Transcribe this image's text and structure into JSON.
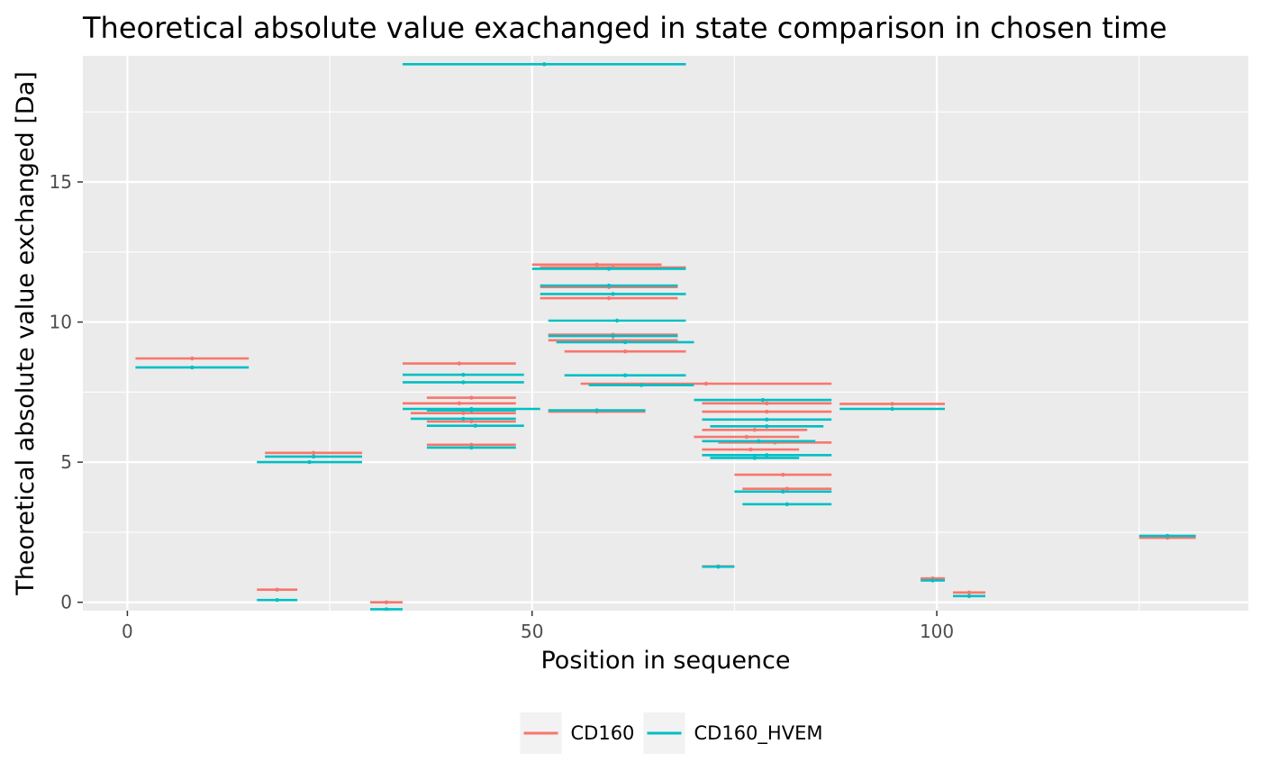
{
  "chart_data": {
    "type": "errorbar-segments",
    "title": "Theoretical absolute value exachanged in state comparison in chosen time",
    "xlabel": "Position in sequence",
    "ylabel": "Theoretical absolute value exchanged [Da]",
    "xlim": [
      -5.5,
      138.5
    ],
    "ylim": [
      -0.3,
      19.5
    ],
    "x_ticks": [
      0,
      50,
      100
    ],
    "x_tick_labels": [
      "0",
      "50",
      "100"
    ],
    "y_ticks": [
      0,
      5,
      10,
      15
    ],
    "y_tick_labels": [
      "0",
      "5",
      "10",
      "15"
    ],
    "grid": true,
    "legend_position": "bottom",
    "series": [
      {
        "name": "CD160",
        "color": "#F8766D",
        "segments": [
          {
            "start": 1,
            "end": 15,
            "value": 8.7
          },
          {
            "start": 16,
            "end": 21,
            "value": 0.45
          },
          {
            "start": 17,
            "end": 29,
            "value": 5.33
          },
          {
            "start": 30,
            "end": 34,
            "value": 0.0
          },
          {
            "start": 34,
            "end": 69,
            "value": 19.6
          },
          {
            "start": 34,
            "end": 48,
            "value": 8.52
          },
          {
            "start": 34,
            "end": 48,
            "value": 7.1
          },
          {
            "start": 35,
            "end": 48,
            "value": 6.75
          },
          {
            "start": 37,
            "end": 48,
            "value": 7.3
          },
          {
            "start": 37,
            "end": 48,
            "value": 6.45
          },
          {
            "start": 37,
            "end": 48,
            "value": 5.62
          },
          {
            "start": 50,
            "end": 66,
            "value": 12.05
          },
          {
            "start": 51,
            "end": 69,
            "value": 11.95
          },
          {
            "start": 51,
            "end": 68,
            "value": 11.25
          },
          {
            "start": 51,
            "end": 68,
            "value": 10.85
          },
          {
            "start": 52,
            "end": 68,
            "value": 9.55
          },
          {
            "start": 52,
            "end": 68,
            "value": 9.35
          },
          {
            "start": 54,
            "end": 69,
            "value": 8.95
          },
          {
            "start": 52,
            "end": 64,
            "value": 6.8
          },
          {
            "start": 56,
            "end": 87,
            "value": 7.8
          },
          {
            "start": 71,
            "end": 87,
            "value": 6.8
          },
          {
            "start": 71,
            "end": 87,
            "value": 7.1
          },
          {
            "start": 71,
            "end": 84,
            "value": 6.15
          },
          {
            "start": 70,
            "end": 83,
            "value": 5.9
          },
          {
            "start": 73,
            "end": 87,
            "value": 5.7
          },
          {
            "start": 71,
            "end": 83,
            "value": 5.45
          },
          {
            "start": 75,
            "end": 87,
            "value": 4.55
          },
          {
            "start": 76,
            "end": 87,
            "value": 4.05
          },
          {
            "start": 71,
            "end": 75,
            "value": 1.28
          },
          {
            "start": 88,
            "end": 101,
            "value": 7.08
          },
          {
            "start": 98,
            "end": 101,
            "value": 0.85
          },
          {
            "start": 102,
            "end": 106,
            "value": 0.35
          },
          {
            "start": 125,
            "end": 132,
            "value": 2.3
          }
        ]
      },
      {
        "name": "CD160_HVEM",
        "color": "#00BFC4",
        "segments": [
          {
            "start": 1,
            "end": 15,
            "value": 8.38
          },
          {
            "start": 16,
            "end": 21,
            "value": 0.08
          },
          {
            "start": 16,
            "end": 29,
            "value": 5.0
          },
          {
            "start": 17,
            "end": 29,
            "value": 5.2
          },
          {
            "start": 30,
            "end": 34,
            "value": -0.25
          },
          {
            "start": 34,
            "end": 69,
            "value": 19.2
          },
          {
            "start": 34,
            "end": 49,
            "value": 8.12
          },
          {
            "start": 34,
            "end": 49,
            "value": 7.85
          },
          {
            "start": 34,
            "end": 51,
            "value": 6.9
          },
          {
            "start": 37,
            "end": 48,
            "value": 6.85
          },
          {
            "start": 35,
            "end": 48,
            "value": 6.55
          },
          {
            "start": 37,
            "end": 49,
            "value": 6.3
          },
          {
            "start": 37,
            "end": 48,
            "value": 5.52
          },
          {
            "start": 50,
            "end": 69,
            "value": 11.9
          },
          {
            "start": 51,
            "end": 68,
            "value": 11.3
          },
          {
            "start": 51,
            "end": 69,
            "value": 11.0
          },
          {
            "start": 52,
            "end": 69,
            "value": 10.05
          },
          {
            "start": 52,
            "end": 68,
            "value": 9.5
          },
          {
            "start": 53,
            "end": 70,
            "value": 9.28
          },
          {
            "start": 54,
            "end": 69,
            "value": 8.1
          },
          {
            "start": 57,
            "end": 70,
            "value": 7.75
          },
          {
            "start": 52,
            "end": 64,
            "value": 6.85
          },
          {
            "start": 70,
            "end": 87,
            "value": 7.22
          },
          {
            "start": 71,
            "end": 87,
            "value": 6.52
          },
          {
            "start": 72,
            "end": 86,
            "value": 6.28
          },
          {
            "start": 71,
            "end": 85,
            "value": 5.75
          },
          {
            "start": 71,
            "end": 87,
            "value": 5.25
          },
          {
            "start": 72,
            "end": 83,
            "value": 5.15
          },
          {
            "start": 75,
            "end": 87,
            "value": 3.95
          },
          {
            "start": 76,
            "end": 87,
            "value": 3.5
          },
          {
            "start": 71,
            "end": 75,
            "value": 1.27
          },
          {
            "start": 88,
            "end": 101,
            "value": 6.9
          },
          {
            "start": 98,
            "end": 101,
            "value": 0.78
          },
          {
            "start": 102,
            "end": 106,
            "value": 0.22
          },
          {
            "start": 125,
            "end": 132,
            "value": 2.37
          }
        ]
      }
    ]
  }
}
